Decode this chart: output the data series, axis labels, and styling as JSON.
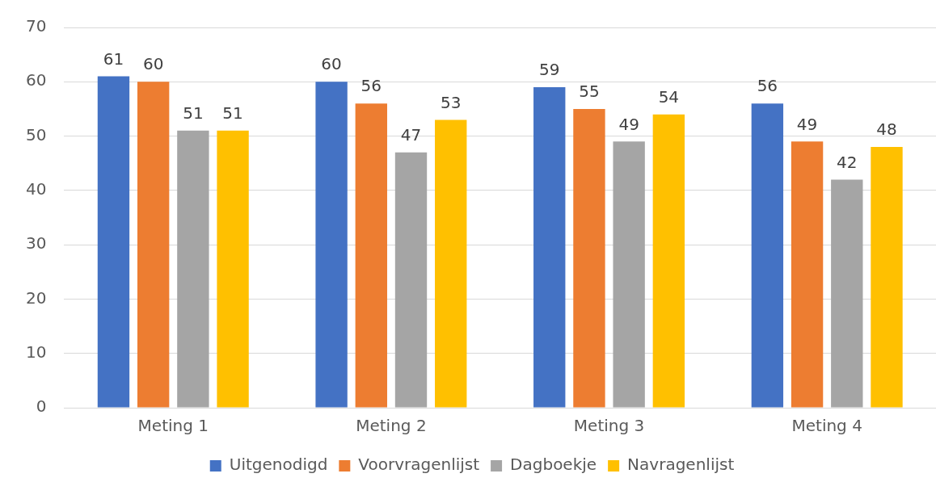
{
  "chart_data": {
    "type": "bar",
    "categories": [
      "Meting 1",
      "Meting 2",
      "Meting 3",
      "Meting 4"
    ],
    "series": [
      {
        "name": "Uitgenodigd",
        "color": "#4472c4",
        "values": [
          61,
          60,
          59,
          56
        ]
      },
      {
        "name": "Voorvragenlijst",
        "color": "#ed7d31",
        "values": [
          60,
          56,
          55,
          49
        ]
      },
      {
        "name": "Dagboekje",
        "color": "#a5a5a5",
        "values": [
          51,
          47,
          49,
          42
        ]
      },
      {
        "name": "Navragenlijst",
        "color": "#ffc000",
        "values": [
          51,
          53,
          54,
          48
        ]
      }
    ],
    "ylim": [
      0,
      70
    ],
    "yticks": [
      0,
      10,
      20,
      30,
      40,
      50,
      60,
      70
    ],
    "grid": "y",
    "legend": "bottom",
    "data_labels": true
  }
}
